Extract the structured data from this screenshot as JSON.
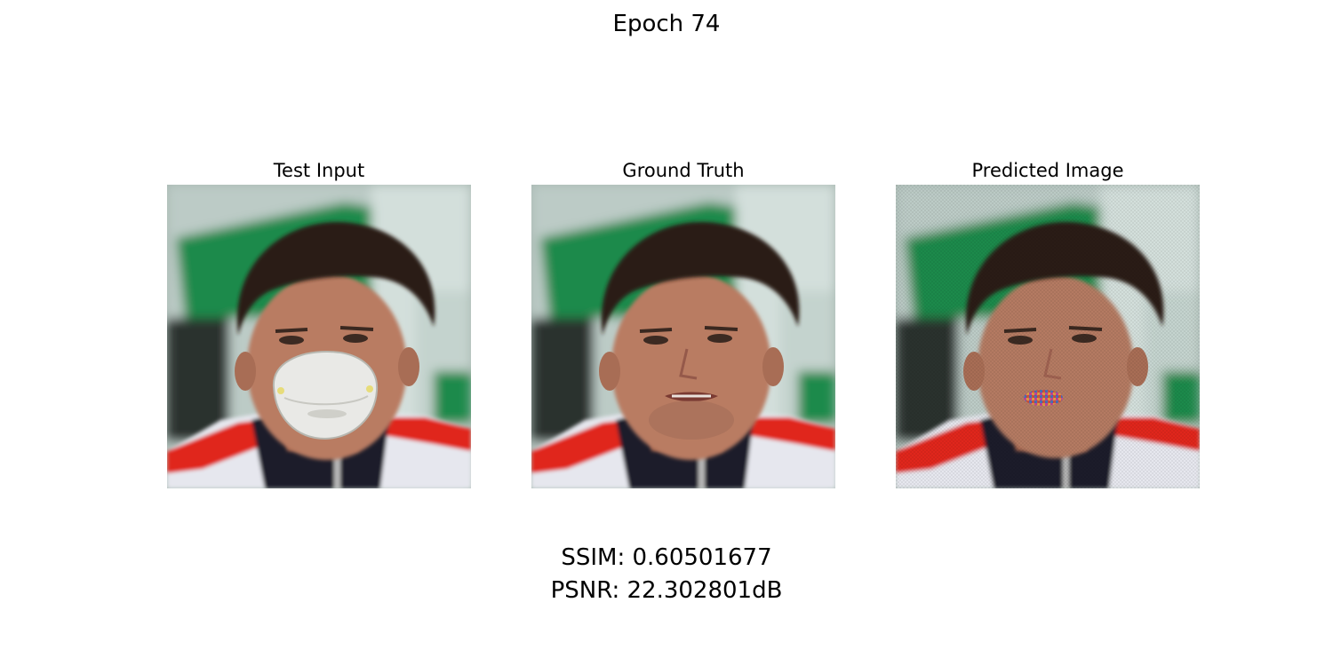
{
  "figure": {
    "title": "Epoch 74"
  },
  "panels": [
    {
      "title": "Test Input",
      "image": "face-with-mask-photo"
    },
    {
      "title": "Ground Truth",
      "image": "face-photo"
    },
    {
      "title": "Predicted Image",
      "image": "face-reconstructed-photo"
    }
  ],
  "metrics": {
    "ssim": "SSIM: 0.60501677",
    "psnr": "PSNR: 22.302801dB"
  },
  "colors": {
    "background_green": "#1e8a4c",
    "background_light": "#c9d8d3",
    "jacket_red": "#e0261f",
    "jacket_navy": "#1a1d2c",
    "jacket_white": "#e6e7ee",
    "skin": "#b97c62",
    "hair": "#2a1c16",
    "mask_white": "#e9e9e6"
  }
}
